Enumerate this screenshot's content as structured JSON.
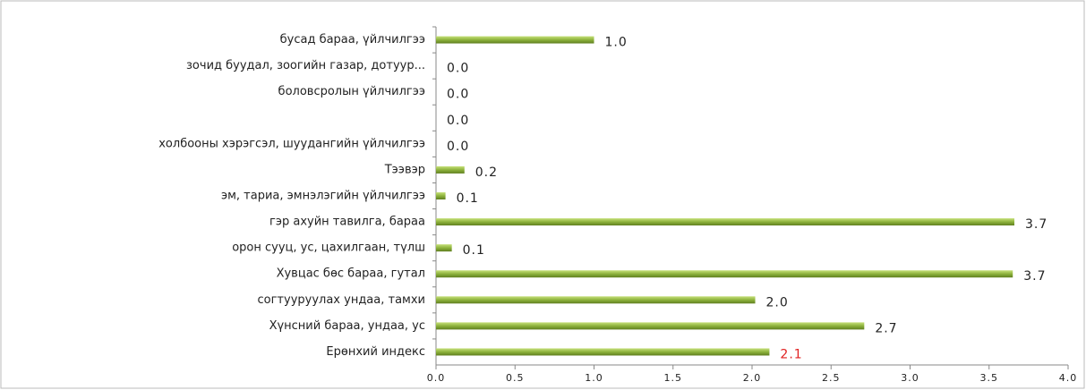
{
  "chart_data": {
    "type": "hbar",
    "categories": [
      "бусад бараа, үйлчилгээ",
      "зочид буудал, зоогийн газар, дотуур...",
      "боловсролын үйлчилгээ",
      null,
      "холбооны хэрэгсэл, шуудангийн үйлчилгээ",
      "Тээвэр",
      "эм, тариа, эмнэлэгийн үйлчилгээ",
      "гэр ахуйн тавилга, бараа",
      "орон сууц, ус, цахилгаан, түлш",
      "Хувцас бөс бараа, гутал",
      "согтууруулах ундаа, тамхи",
      "Хүнсний бараа, ундаа, ус",
      "Ерөнхий индекс"
    ],
    "values": [
      1.0,
      0,
      0,
      0,
      0,
      0.18,
      0.06,
      3.66,
      0.1,
      3.65,
      2.02,
      2.71,
      2.11
    ],
    "value_labels": [
      "1.0",
      "0.0",
      "0.0",
      "0.0",
      "0.0",
      "0.2",
      "0.1",
      "3.7",
      "0.1",
      "3.7",
      "2.0",
      "2.7",
      "2.1"
    ],
    "value_label_colors": [
      "#222",
      "#222",
      "#222",
      "#222",
      "#222",
      "#222",
      "#222",
      "#222",
      "#222",
      "#222",
      "#222",
      "#222",
      "#e02020"
    ],
    "color": "#8db23c",
    "xlim": [
      0,
      4
    ],
    "xticks": [
      {
        "value": 0,
        "label": "0.0"
      },
      {
        "value": 0.5,
        "label": "0.5"
      },
      {
        "value": 1,
        "label": "1.0"
      },
      {
        "value": 1.5,
        "label": "1.5"
      },
      {
        "value": 2,
        "label": "2.0"
      },
      {
        "value": 2.5,
        "label": "2.5"
      },
      {
        "value": 3,
        "label": "3.0"
      },
      {
        "value": 3.5,
        "label": "3.5"
      },
      {
        "value": 4,
        "label": "4.0"
      }
    ]
  }
}
